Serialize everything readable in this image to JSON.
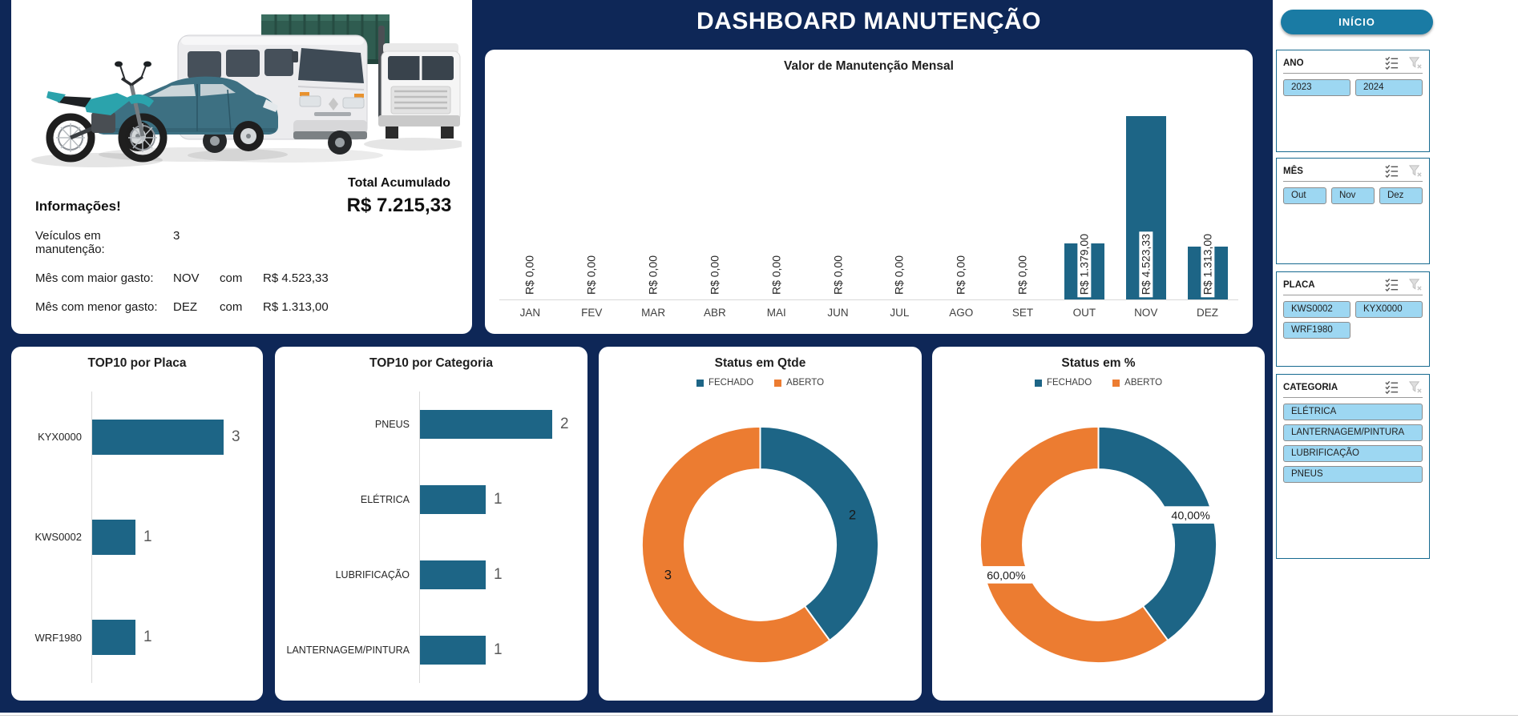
{
  "app": {
    "title": "DASHBOARD MANUTENÇÃO"
  },
  "colors": {
    "background_navy": "#0e2757",
    "bar_teal": "#1d6586",
    "orange": "#ec7c31",
    "home_button": "#1a7ba4",
    "slicer_item": "#9dd7f2"
  },
  "info_card": {
    "heading": "Informações!",
    "lines": [
      {
        "label": "Veículos em manutenção:",
        "value": "3"
      },
      {
        "label": "Mês com maior gasto:",
        "value": "NOV",
        "mid": "com",
        "amount": "R$ 4.523,33"
      },
      {
        "label": "Mês com menor gasto:",
        "value": "DEZ",
        "mid": "com",
        "amount": "R$ 1.313,00"
      }
    ],
    "total_label": "Total Acumulado",
    "total_value": "R$ 7.215,33"
  },
  "chart_data": [
    {
      "name": "valor_manutencao_mensal",
      "type": "bar",
      "title": "Valor de Manutenção Mensal",
      "categories": [
        "JAN",
        "FEV",
        "MAR",
        "ABR",
        "MAI",
        "JUN",
        "JUL",
        "AGO",
        "SET",
        "OUT",
        "NOV",
        "DEZ"
      ],
      "values": [
        0,
        0,
        0,
        0,
        0,
        0,
        0,
        0,
        0,
        1379,
        4523.33,
        1313
      ],
      "data_labels": [
        "R$ 0,00",
        "R$ 0,00",
        "R$ 0,00",
        "R$ 0,00",
        "R$ 0,00",
        "R$ 0,00",
        "R$ 0,00",
        "R$ 0,00",
        "R$ 0,00",
        "R$ 1.379,00",
        "R$ 4.523,33",
        "R$ 1.313,00"
      ],
      "ylim": [
        0,
        4523.33
      ],
      "bar_color": "#1d6586",
      "grid": false
    },
    {
      "name": "top10_por_placa",
      "type": "bar",
      "orientation": "horizontal",
      "title": "TOP10 por Placa",
      "categories": [
        "KYX0000",
        "KWS0002",
        "WRF1980"
      ],
      "values": [
        3,
        1,
        1
      ],
      "data_labels": [
        "3",
        "1",
        "1"
      ],
      "xlim": [
        0,
        3.6
      ],
      "bar_color": "#1d6586"
    },
    {
      "name": "top10_por_categoria",
      "type": "bar",
      "orientation": "horizontal",
      "title": "TOP10 por Categoria",
      "categories": [
        "PNEUS",
        "ELÉTRICA",
        "LUBRIFICAÇÃO",
        "LANTERNAGEM/PINTURA"
      ],
      "values": [
        2,
        1,
        1,
        1
      ],
      "data_labels": [
        "2",
        "1",
        "1",
        "1"
      ],
      "xlim": [
        0,
        2.6
      ],
      "bar_color": "#1d6586"
    },
    {
      "name": "status_em_qtde",
      "type": "pie",
      "subtype": "donut",
      "title": "Status em Qtde",
      "legend": [
        "FECHADO",
        "ABERTO"
      ],
      "legend_position": "top",
      "labels": [
        "FECHADO",
        "ABERTO"
      ],
      "values": [
        2,
        3
      ],
      "data_labels": [
        "2",
        "3"
      ],
      "boxed_labels": false,
      "colors": [
        "#1d6586",
        "#ec7c31"
      ]
    },
    {
      "name": "status_em_pct",
      "type": "pie",
      "subtype": "donut",
      "title": "Status em %",
      "legend": [
        "FECHADO",
        "ABERTO"
      ],
      "legend_position": "top",
      "labels": [
        "FECHADO",
        "ABERTO"
      ],
      "values": [
        40,
        60
      ],
      "data_labels": [
        "40,00%",
        "60,00%"
      ],
      "boxed_labels": true,
      "colors": [
        "#1d6586",
        "#ec7c31"
      ]
    }
  ],
  "sidebar": {
    "home_button": "INÍCIO",
    "slicers": [
      {
        "title": "ANO",
        "columns": 2,
        "items": [
          "2023",
          "2024"
        ]
      },
      {
        "title": "MÊS",
        "columns": 3,
        "items": [
          "Out",
          "Nov",
          "Dez"
        ]
      },
      {
        "title": "PLACA",
        "columns": 2,
        "items": [
          "KWS0002",
          "KYX0000",
          "WRF1980"
        ]
      },
      {
        "title": "CATEGORIA",
        "columns": 1,
        "items": [
          "ELÉTRICA",
          "LANTERNAGEM/PINTURA",
          "LUBRIFICAÇÃO",
          "PNEUS"
        ]
      }
    ]
  }
}
